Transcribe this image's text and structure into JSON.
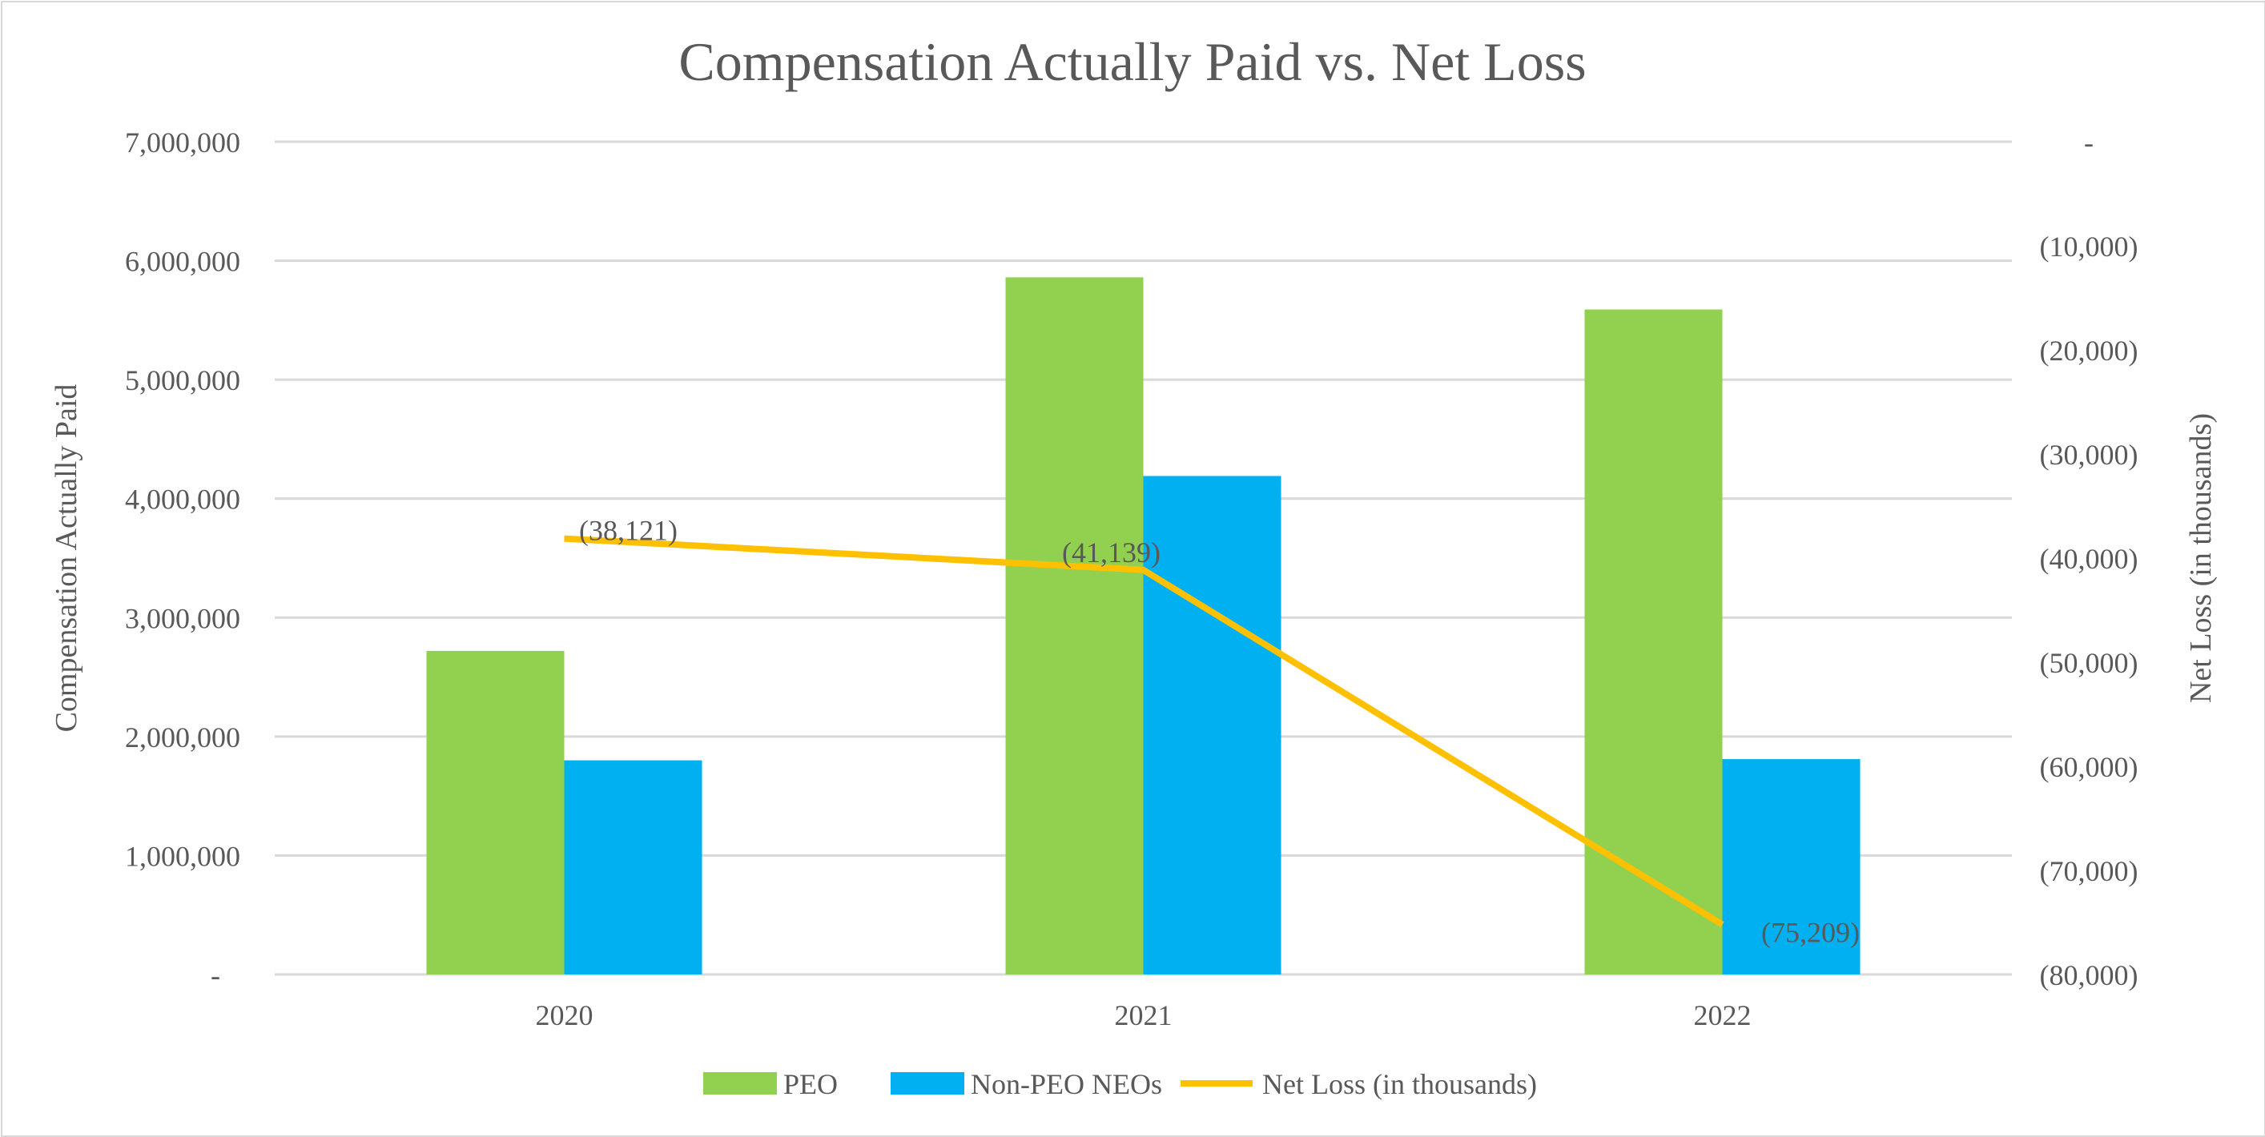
{
  "chart_data": {
    "type": "bar+line",
    "title": "Compensation Actually Paid vs. Net Loss",
    "categories": [
      "2020",
      "2021",
      "2022"
    ],
    "ylabel": "Compensation Actually Paid",
    "y2label": "Net Loss (in thousands)",
    "ylim": [
      0,
      7000000
    ],
    "y2lim": [
      -80000,
      0
    ],
    "yticks": [
      "-",
      "1,000,000",
      "2,000,000",
      "3,000,000",
      "4,000,000",
      "5,000,000",
      "6,000,000",
      "7,000,000"
    ],
    "y2ticks": [
      "-",
      "(10,000)",
      "(20,000)",
      "(30,000)",
      "(40,000)",
      "(50,000)",
      "(60,000)",
      "(70,000)",
      "(80,000)"
    ],
    "grid": true,
    "legend_position": "bottom",
    "series": [
      {
        "name": "PEO",
        "type": "bar",
        "axis": "left",
        "color": "#92d050",
        "values": [
          2720000,
          5860000,
          5590000
        ]
      },
      {
        "name": "Non-PEO NEOs",
        "type": "bar",
        "axis": "left",
        "color": "#00b0f0",
        "values": [
          1800000,
          4190000,
          1810000
        ]
      },
      {
        "name": "Net Loss (in thousands)",
        "type": "line",
        "axis": "right",
        "color": "#ffc000",
        "values": [
          -38121,
          -41139,
          -75209
        ],
        "data_labels": [
          "(38,121)",
          "(41,139)",
          "(75,209)"
        ]
      }
    ]
  }
}
